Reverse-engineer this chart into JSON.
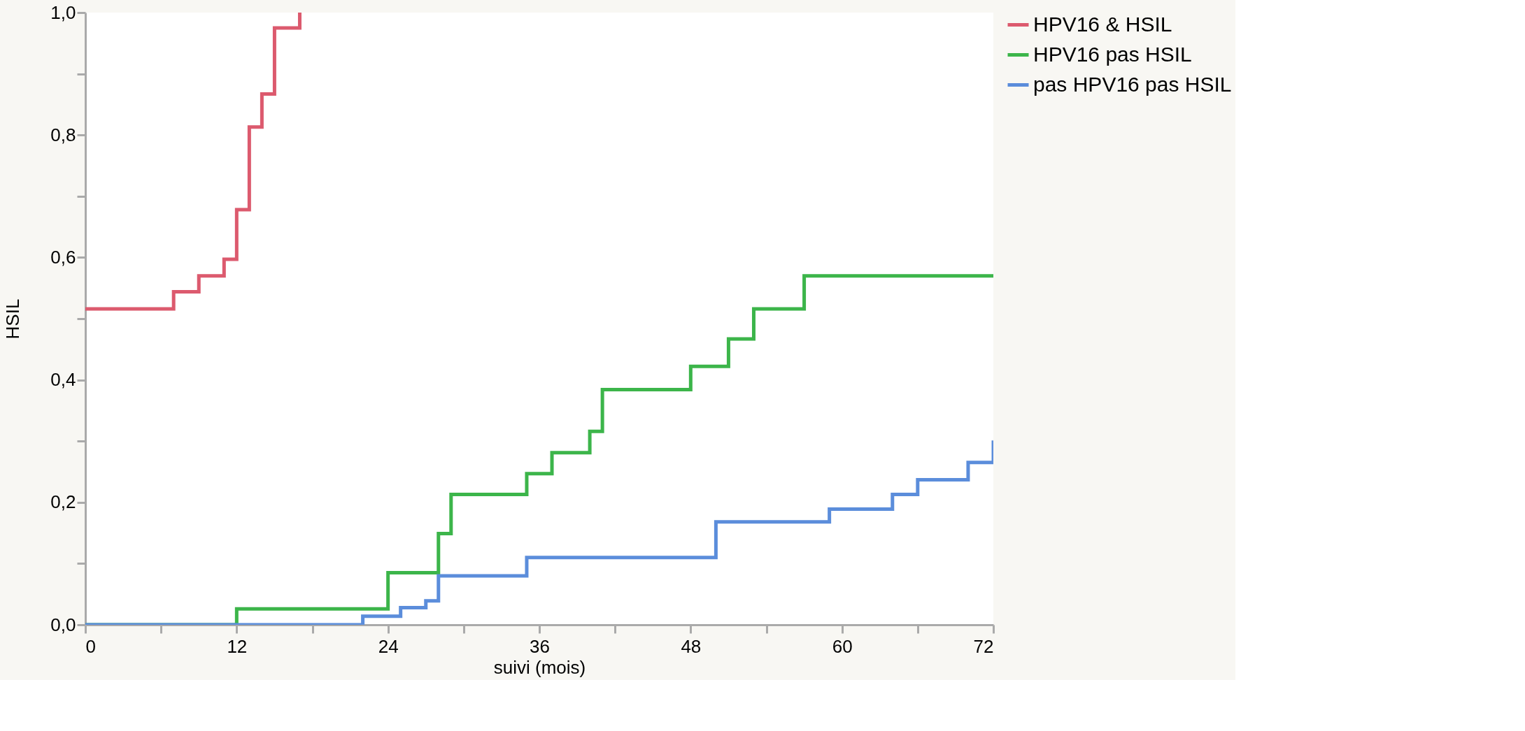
{
  "chart_data": {
    "type": "step",
    "xlabel": "suivi (mois)",
    "ylabel": "HSIL",
    "xlim": [
      0,
      72
    ],
    "ylim": [
      0,
      1
    ],
    "xticks": [
      0,
      {
        "value": 6,
        "label": null
      },
      12,
      {
        "value": 18,
        "label": null
      },
      24,
      {
        "value": 30,
        "label": null
      },
      36,
      {
        "value": 42,
        "label": null
      },
      48,
      {
        "value": 54,
        "label": null
      },
      60,
      {
        "value": 66,
        "label": null
      },
      72
    ],
    "yticks": [
      {
        "value": 0,
        "label": "0,0"
      },
      {
        "value": 0.1,
        "label": null
      },
      {
        "value": 0.2,
        "label": "0,2"
      },
      {
        "value": 0.3,
        "label": null
      },
      {
        "value": 0.4,
        "label": "0,4"
      },
      {
        "value": 0.5,
        "label": null
      },
      {
        "value": 0.6,
        "label": "0,6"
      },
      {
        "value": 0.7,
        "label": null
      },
      {
        "value": 0.8,
        "label": "0,8"
      },
      {
        "value": 0.9,
        "label": null
      },
      {
        "value": 1,
        "label": "1,0"
      }
    ],
    "grid": false,
    "legend": "top right",
    "series": [
      {
        "name": "HPV16 & HSIL",
        "color": "#dc5a6e",
        "x": [
          0,
          7,
          9,
          11,
          12,
          13,
          14,
          15,
          17
        ],
        "values": [
          0.516,
          0.544,
          0.57,
          0.597,
          0.678,
          0.813,
          0.867,
          0.975,
          1.0
        ]
      },
      {
        "name": "HPV16 pas HSIL",
        "color": "#3cb54a",
        "x": [
          0,
          12,
          24,
          28,
          29,
          35,
          37,
          40,
          41,
          48,
          51,
          53,
          57,
          72
        ],
        "values": [
          0,
          0.026,
          0.085,
          0.149,
          0.213,
          0.247,
          0.281,
          0.316,
          0.384,
          0.422,
          0.467,
          0.516,
          0.57,
          0.57
        ]
      },
      {
        "name": "pas HPV16 pas HSIL",
        "color": "#5b8ddb",
        "x": [
          0,
          22,
          25,
          27,
          28,
          35,
          50,
          59,
          64,
          66,
          70,
          72
        ],
        "values": [
          0,
          0.014,
          0.028,
          0.039,
          0.08,
          0.11,
          0.168,
          0.189,
          0.213,
          0.237,
          0.265,
          0.301
        ]
      }
    ]
  }
}
